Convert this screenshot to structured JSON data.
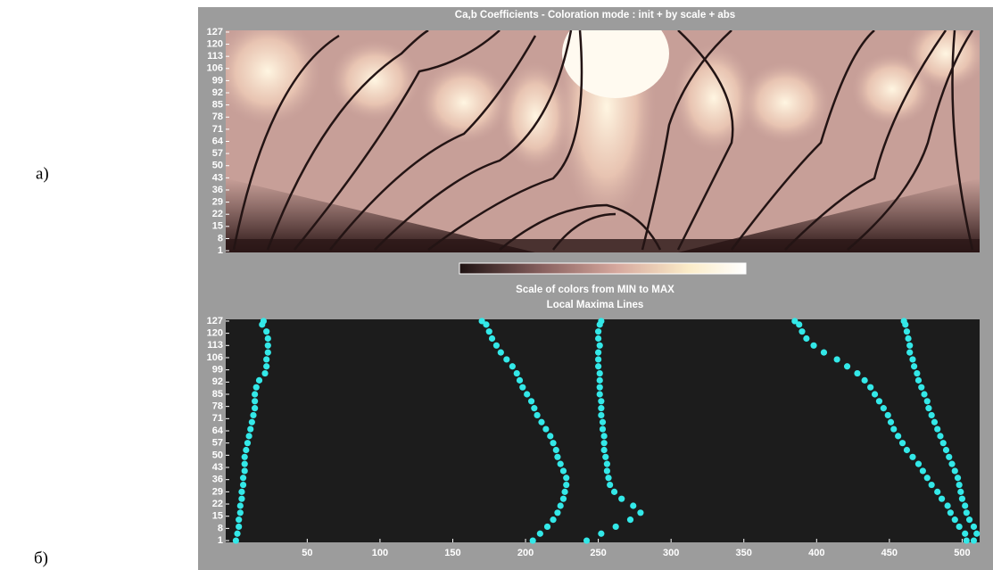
{
  "labels": {
    "a": "а)",
    "b": "б)"
  },
  "chart_data": [
    {
      "type": "heatmap",
      "title": "Ca,b Coefficients  - Coloration mode : init + by scale + abs",
      "colorbar_label": "Scale of colors from MIN to MAX",
      "ylim": [
        0,
        128
      ],
      "yticks": [
        1,
        8,
        15,
        22,
        29,
        36,
        43,
        50,
        57,
        64,
        71,
        78,
        85,
        92,
        99,
        106,
        113,
        120,
        127
      ]
    },
    {
      "type": "scatter",
      "title": "Local Maxima Lines",
      "xlim": [
        -6,
        512
      ],
      "ylim": [
        0,
        128
      ],
      "xticks": [
        50,
        100,
        150,
        200,
        250,
        300,
        350,
        400,
        450,
        500
      ],
      "yticks": [
        1,
        8,
        15,
        22,
        29,
        36,
        43,
        50,
        57,
        64,
        71,
        78,
        85,
        92,
        99,
        106,
        113,
        120,
        127
      ],
      "series": [
        {
          "color": "#33e8e8",
          "x": [
            1,
            2,
            3,
            3,
            4,
            4,
            5,
            5,
            6,
            6,
            7,
            7,
            7,
            8,
            9,
            10,
            11,
            12,
            13,
            14,
            14,
            14,
            15,
            17,
            21,
            22,
            22,
            23,
            23,
            23,
            22,
            19,
            20
          ],
          "y": [
            1,
            5,
            9,
            13,
            17,
            21,
            25,
            29,
            33,
            37,
            41,
            45,
            49,
            53,
            57,
            61,
            65,
            69,
            73,
            77,
            81,
            85,
            89,
            93,
            97,
            101,
            105,
            109,
            113,
            117,
            121,
            125,
            127
          ]
        },
        {
          "color": "#33e8e8",
          "x": [
            205,
            210,
            215,
            219,
            222,
            224,
            226,
            227,
            228,
            228,
            226,
            224,
            222,
            221,
            219,
            217,
            214,
            211,
            208,
            206,
            204,
            201,
            198,
            196,
            194,
            191,
            187,
            183,
            180,
            177,
            175,
            173,
            170
          ],
          "y": [
            1,
            5,
            9,
            13,
            17,
            21,
            25,
            29,
            33,
            37,
            41,
            45,
            49,
            53,
            57,
            61,
            65,
            69,
            73,
            77,
            81,
            85,
            89,
            93,
            97,
            101,
            105,
            109,
            113,
            117,
            121,
            125,
            127
          ]
        },
        {
          "color": "#33e8e8",
          "x": [
            242,
            252,
            262,
            272,
            279,
            274,
            266,
            261,
            258,
            257,
            256,
            256,
            255,
            254,
            254,
            254,
            253,
            253,
            252,
            252,
            252,
            251,
            251,
            251,
            251,
            250,
            250,
            250,
            251,
            250,
            250,
            251,
            252
          ],
          "y": [
            1,
            5,
            9,
            13,
            17,
            21,
            25,
            29,
            33,
            37,
            41,
            45,
            49,
            53,
            57,
            61,
            65,
            69,
            73,
            77,
            81,
            85,
            89,
            93,
            97,
            101,
            105,
            109,
            113,
            117,
            121,
            125,
            127
          ]
        },
        {
          "color": "#33e8e8",
          "x": [
            503,
            502,
            498,
            495,
            492,
            490,
            486,
            483,
            479,
            476,
            473,
            470,
            466,
            462,
            459,
            456,
            453,
            451,
            449,
            446,
            443,
            440,
            437,
            433,
            428,
            421,
            414,
            405,
            398,
            393,
            390,
            388,
            385
          ],
          "y": [
            1,
            5,
            9,
            13,
            17,
            21,
            25,
            29,
            33,
            37,
            41,
            45,
            49,
            53,
            57,
            61,
            65,
            69,
            73,
            77,
            81,
            85,
            89,
            93,
            97,
            101,
            105,
            109,
            113,
            117,
            121,
            125,
            127
          ]
        },
        {
          "color": "#33e8e8",
          "x": [
            508,
            510,
            508,
            505,
            503,
            502,
            500,
            499,
            498,
            497,
            495,
            493,
            491,
            489,
            487,
            485,
            483,
            481,
            479,
            477,
            476,
            474,
            472,
            470,
            469,
            467,
            466,
            464,
            464,
            463,
            462,
            461,
            460
          ],
          "y": [
            1,
            5,
            9,
            13,
            17,
            21,
            25,
            29,
            33,
            37,
            41,
            45,
            49,
            53,
            57,
            61,
            65,
            69,
            73,
            77,
            81,
            85,
            89,
            93,
            97,
            101,
            105,
            109,
            113,
            117,
            121,
            125,
            127
          ]
        }
      ]
    }
  ]
}
